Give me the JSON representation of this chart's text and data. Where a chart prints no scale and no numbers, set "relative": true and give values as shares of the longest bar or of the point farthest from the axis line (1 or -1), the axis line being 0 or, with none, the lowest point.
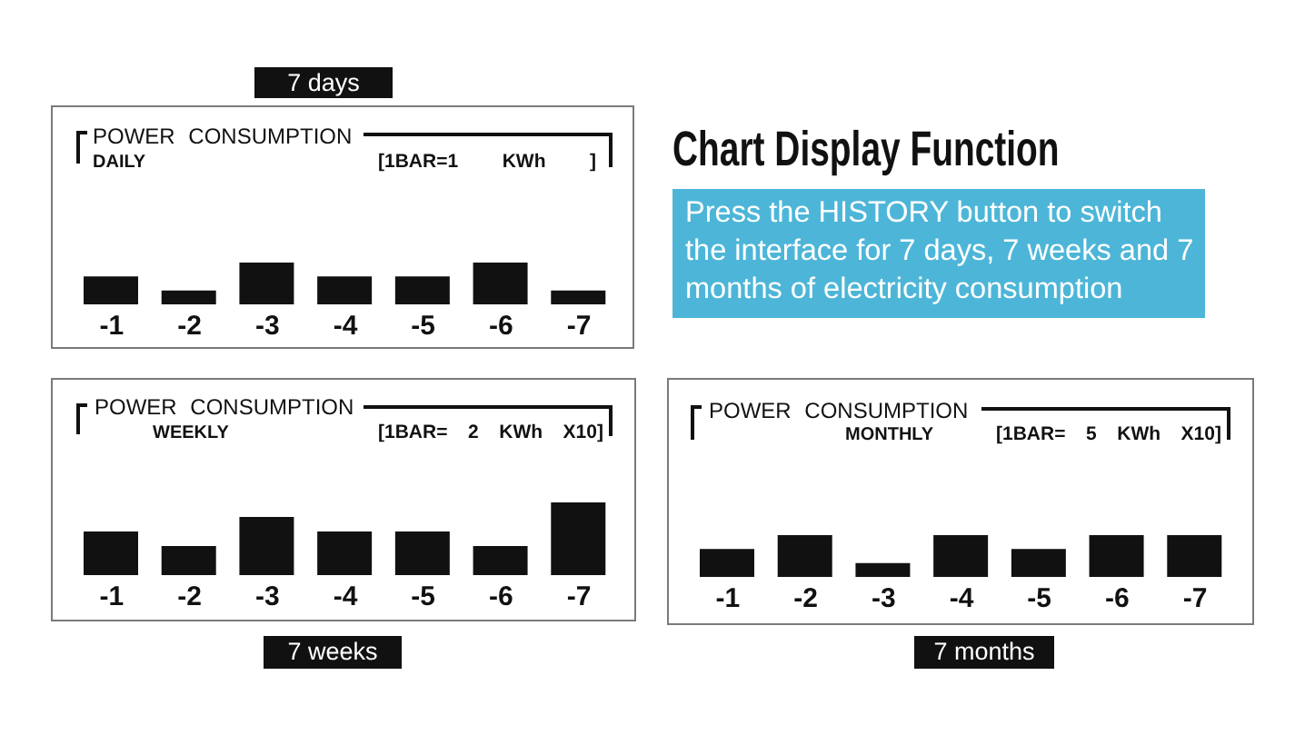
{
  "chart_data": [
    {
      "type": "bar",
      "title": "POWER CONSUMPTION",
      "subtitle": "DAILY",
      "annotations": [
        "[1BAR=1 KWh ]",
        "7 days"
      ],
      "categories": [
        "-1",
        "-2",
        "-3",
        "-4",
        "-5",
        "-6",
        "-7"
      ],
      "values": [
        0.67,
        0.33,
        1,
        0.67,
        0.67,
        1,
        0.33
      ],
      "color": "#111111",
      "relative": true
    },
    {
      "type": "other",
      "title": "Chart Display Function",
      "annotations": [
        "Press the HISTORY button to switch the interface for 7 days, 7 weeks and 7 months of electricity consumption"
      ]
    },
    {
      "type": "bar",
      "title": "POWER CONSUMPTION",
      "subtitle": "WEEKLY",
      "annotations": [
        "[1BAR= 2 KWh X10]",
        "7 weeks"
      ],
      "categories": [
        "-1",
        "-2",
        "-3",
        "-4",
        "-5",
        "-6",
        "-7"
      ],
      "values": [
        0.6,
        0.4,
        0.8,
        0.6,
        0.6,
        0.4,
        1
      ],
      "color": "#111111",
      "relative": true
    },
    {
      "type": "bar",
      "title": "POWER CONSUMPTION",
      "subtitle": "MONTHLY",
      "annotations": [
        "[1BAR= 5 KWh X10]",
        "7 months"
      ],
      "categories": [
        "-1",
        "-2",
        "-3",
        "-4",
        "-5",
        "-6",
        "-7"
      ],
      "values": [
        0.67,
        1,
        0.33,
        1,
        0.67,
        1,
        1
      ],
      "color": "#111111",
      "relative": true
    }
  ]
}
